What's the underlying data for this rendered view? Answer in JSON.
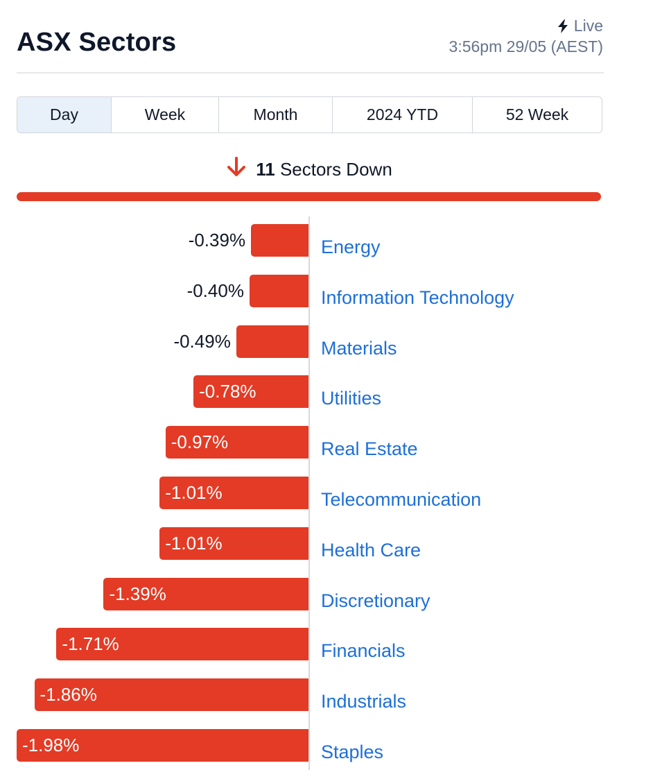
{
  "header": {
    "title": "ASX Sectors",
    "live_label": "Live",
    "timestamp": "3:56pm 29/05 (AEST)"
  },
  "tabs": [
    {
      "label": "Day",
      "active": true
    },
    {
      "label": "Week",
      "active": false
    },
    {
      "label": "Month",
      "active": false
    },
    {
      "label": "2024 YTD",
      "active": false
    },
    {
      "label": "52 Week",
      "active": false
    }
  ],
  "summary": {
    "count": "11",
    "label": "Sectors Down",
    "icon": "arrow-down-icon",
    "color": "#e33b25"
  },
  "colors": {
    "negative": "#e33b25",
    "link": "#1d6fd8",
    "muted": "#64748b"
  },
  "chart_data": {
    "type": "bar",
    "orientation": "horizontal",
    "categories": [
      "Energy",
      "Information Technology",
      "Materials",
      "Utilities",
      "Real Estate",
      "Telecommunication",
      "Health Care",
      "Discretionary",
      "Financials",
      "Industrials",
      "Staples"
    ],
    "values": [
      -0.39,
      -0.4,
      -0.49,
      -0.78,
      -0.97,
      -1.01,
      -1.01,
      -1.39,
      -1.71,
      -1.86,
      -1.98
    ],
    "labels": [
      "-0.39%",
      "-0.40%",
      "-0.49%",
      "-0.78%",
      "-0.97%",
      "-1.01%",
      "-1.01%",
      "-1.39%",
      "-1.71%",
      "-1.86%",
      "-1.98%"
    ],
    "unit": "%",
    "xlim": [
      -1.98,
      0
    ],
    "color": "#e33b25"
  }
}
